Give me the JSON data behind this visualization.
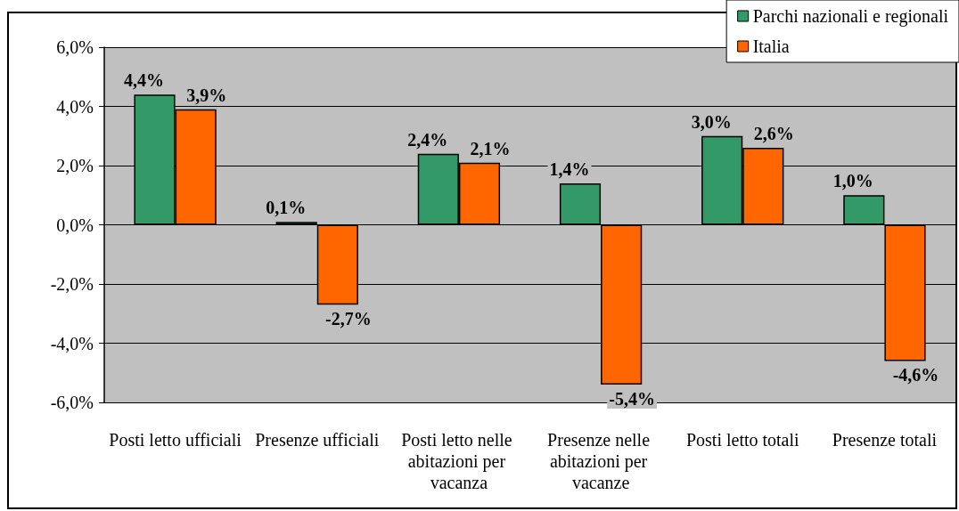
{
  "chart_data": {
    "type": "bar",
    "categories": [
      "Posti letto ufficiali",
      "Presenze ufficiali",
      "Posti letto nelle abitazioni per vacanza",
      "Presenze nelle abitazioni per vacanze",
      "Posti letto totali",
      "Presenze totali"
    ],
    "series": [
      {
        "name": "Parchi nazionali e regionali",
        "color": "#339966",
        "values": [
          4.4,
          0.1,
          2.4,
          1.4,
          3.0,
          1.0
        ],
        "value_labels": [
          "4,4%",
          "0,1%",
          "2,4%",
          "1,4%",
          "3,0%",
          "1,0%"
        ]
      },
      {
        "name": "Italia",
        "color": "#ff6600",
        "values": [
          3.9,
          -2.7,
          2.1,
          -5.4,
          2.6,
          -4.6
        ],
        "value_labels": [
          "3,9%",
          "-2,7%",
          "2,1%",
          "-5,4%",
          "2,6%",
          "-4,6%"
        ]
      }
    ],
    "ylim": [
      -6,
      6
    ],
    "yticks": [
      {
        "value": -6,
        "label": "-6,0%"
      },
      {
        "value": -4,
        "label": "-4,0%"
      },
      {
        "value": -2,
        "label": "-2,0%"
      },
      {
        "value": 0,
        "label": "0,0%"
      },
      {
        "value": 2,
        "label": "2,0%"
      },
      {
        "value": 4,
        "label": "4,0%"
      },
      {
        "value": 6,
        "label": "6,0%"
      }
    ],
    "grid": "y",
    "legend": "top right"
  }
}
